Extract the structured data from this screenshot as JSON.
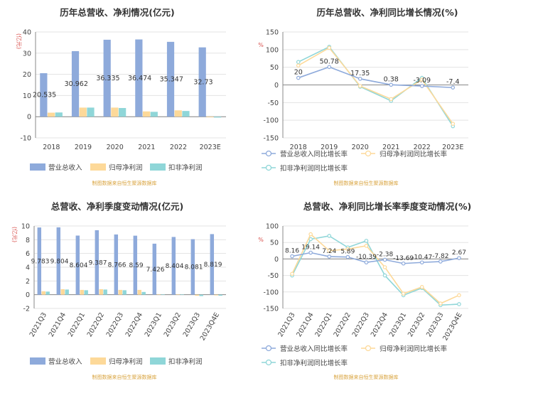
{
  "colors": {
    "revenue": "#8eaadb",
    "net_profit": "#fdd999",
    "deducted_profit": "#8fd6d8"
  },
  "chart_data": [
    {
      "type": "bar",
      "title": "历年总营收、净利情况(亿元)",
      "ylabel": "(亿元)",
      "categories": [
        "2018",
        "2019",
        "2020",
        "2021",
        "2022",
        "2023E"
      ],
      "ylim": [
        -10,
        40
      ],
      "yticks": [
        "-10",
        "0",
        "10",
        "20",
        "30",
        "40"
      ],
      "series": [
        {
          "name": "营业总收入",
          "values": [
            20.535,
            30.962,
            36.335,
            36.474,
            35.347,
            32.73
          ],
          "labels": [
            "20.535",
            "30.962",
            "36.335",
            "36.474",
            "35.347",
            "32.73"
          ]
        },
        {
          "name": "归母净利润",
          "values": [
            1.9,
            4.3,
            4.3,
            2.5,
            3.0,
            -0.3
          ]
        },
        {
          "name": "扣非净利润",
          "values": [
            2.0,
            4.3,
            4.1,
            2.3,
            2.7,
            -0.4
          ]
        }
      ],
      "legend_position": "bottom",
      "source": "制图数据来自恒生聚源数据库"
    },
    {
      "type": "line",
      "title": "历年总营收、净利同比增长情况(%)",
      "ylabel": "%",
      "categories": [
        "2018",
        "2019",
        "2020",
        "2021",
        "2022",
        "2023E"
      ],
      "ylim": [
        -150,
        150
      ],
      "yticks": [
        "-150",
        "-100",
        "-50",
        "0",
        "50",
        "100",
        "150"
      ],
      "series": [
        {
          "name": "营业总收入同比增长率",
          "values": [
            20,
            50.78,
            17.35,
            0.38,
            -3.09,
            -7.4
          ],
          "labels": [
            "20",
            "50.78",
            "17.35",
            "0.38",
            "-3.09",
            "-7.4"
          ]
        },
        {
          "name": "归母净利润同比增长率",
          "values": [
            55,
            105,
            -3,
            -40,
            15,
            -110
          ]
        },
        {
          "name": "扣非净利润同比增长率",
          "values": [
            65,
            108,
            -5,
            -45,
            20,
            -117
          ]
        }
      ],
      "legend_position": "bottom",
      "source": "制图数据来自恒生聚源数据库"
    },
    {
      "type": "bar",
      "title": "总营收、净利季度变动情况(亿元)",
      "ylabel": "(亿元)",
      "categories": [
        "2021Q3",
        "2021Q4",
        "2022Q1",
        "2022Q2",
        "2022Q3",
        "2022Q4",
        "2023Q1",
        "2023Q2",
        "2023Q3",
        "2023Q4E"
      ],
      "ylim": [
        -2,
        10
      ],
      "yticks": [
        "-2",
        "0",
        "2",
        "4",
        "6",
        "8",
        "10"
      ],
      "series": [
        {
          "name": "营业总收入",
          "values": [
            9.783,
            9.804,
            8.604,
            9.387,
            8.766,
            8.59,
            7.426,
            8.404,
            8.081,
            8.819
          ],
          "labels": [
            "9.783",
            "9.804",
            "8.604",
            "9.387",
            "8.766",
            "8.59",
            "7.426",
            "8.404",
            "8.081",
            "8.819"
          ]
        },
        {
          "name": "归母净利润",
          "values": [
            0.5,
            0.8,
            0.7,
            0.8,
            0.7,
            0.7,
            0.05,
            0.05,
            -0.15,
            -0.1
          ]
        },
        {
          "name": "扣非净利润",
          "values": [
            0.45,
            0.75,
            0.65,
            0.75,
            0.65,
            0.4,
            0.03,
            0.03,
            -0.2,
            -0.15
          ]
        }
      ],
      "legend_position": "bottom",
      "source": "制图数据来自恒生聚源数据库"
    },
    {
      "type": "line",
      "title": "总营收、净利同比增长率季度变动情况(%)",
      "ylabel": "%",
      "categories": [
        "2021Q3",
        "2021Q4",
        "2022Q1",
        "2022Q2",
        "2022Q3",
        "2022Q4",
        "2023Q1",
        "2023Q2",
        "2023Q3",
        "2023Q4E"
      ],
      "ylim": [
        -150,
        100
      ],
      "yticks": [
        "-150",
        "-100",
        "-50",
        "0",
        "50",
        "100"
      ],
      "series": [
        {
          "name": "营业总收入同比增长率",
          "values": [
            8.16,
            19.14,
            7.24,
            5.89,
            -10.39,
            -2.38,
            -13.69,
            -10.47,
            -7.82,
            2.67
          ],
          "labels": [
            "8.16",
            "19.14",
            "7.24",
            "5.89",
            "-10.39",
            "-2.38",
            "-13.69",
            "-10.47",
            "-7.82",
            "2.67"
          ]
        },
        {
          "name": "归母净利润同比增长率",
          "values": [
            -45,
            75,
            25,
            30,
            40,
            -25,
            -105,
            -85,
            -135,
            -110
          ]
        },
        {
          "name": "扣非净利润同比增长率",
          "values": [
            -50,
            60,
            70,
            35,
            55,
            -50,
            -110,
            -88,
            -140,
            -137
          ]
        }
      ],
      "legend_position": "bottom",
      "source": "制图数据来自恒生聚源数据库"
    }
  ]
}
